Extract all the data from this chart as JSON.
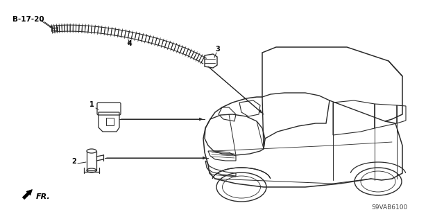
{
  "bg_color": "#ffffff",
  "fig_width": 6.4,
  "fig_height": 3.19,
  "dpi": 100,
  "label_b1720": "B-17-20",
  "label_1": "1",
  "label_2": "2",
  "label_3": "3",
  "label_4": "4",
  "label_fr": "FR.",
  "label_code": "S9VAB6100",
  "lc": "#2a2a2a",
  "tc": "#000000",
  "gray": "#888888"
}
